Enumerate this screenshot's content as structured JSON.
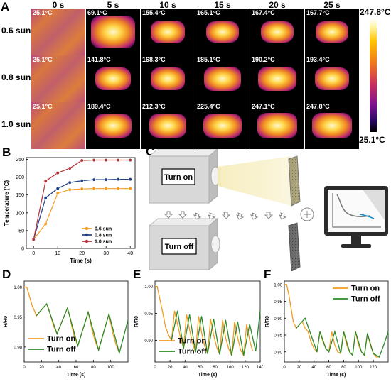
{
  "panel_labels": {
    "a": "A",
    "b": "B",
    "c": "C",
    "d": "D",
    "e": "E",
    "f": "F"
  },
  "panel_a": {
    "times": [
      "0 s",
      "5 s",
      "10 s",
      "15 s",
      "20 s",
      "25 s"
    ],
    "rows": [
      {
        "label": "0.6 sun",
        "temps": [
          "25.1°C",
          "69.1°C",
          "155.4°C",
          "165.1°C",
          "167.4°C",
          "167.7°C"
        ]
      },
      {
        "label": "0.8 sun",
        "temps": [
          "25.1°C",
          "141.8°C",
          "168.3°C",
          "185.1°C",
          "190.2°C",
          "193.4°C"
        ]
      },
      {
        "label": "1.0 sun",
        "temps": [
          "25.1°C",
          "189.4°C",
          "212.3°C",
          "225.4°C",
          "247.1°C",
          "247.8°C"
        ]
      }
    ],
    "colorbar": {
      "max": "247.8°C",
      "min": "25.1°C"
    }
  },
  "panel_c": {
    "turn_on": "Turn on",
    "turn_off": "Turn off"
  },
  "chart_data": [
    {
      "type": "line",
      "panel": "B",
      "xlabel": "Time (s)",
      "ylabel": "Temperature (°C)",
      "xlim": [
        -3,
        42
      ],
      "ylim": [
        0,
        255
      ],
      "xticks": [
        0,
        10,
        20,
        30,
        40
      ],
      "yticks": [
        0,
        50,
        100,
        150,
        200,
        250
      ],
      "legend_position": "bottom-right",
      "series": [
        {
          "name": "0.6 sun",
          "color": "#f39b1f",
          "x": [
            0,
            5,
            10,
            15,
            20,
            25,
            30,
            35,
            40
          ],
          "y": [
            25,
            69,
            155,
            165,
            167,
            168,
            168,
            168,
            168
          ]
        },
        {
          "name": "0.8 sun",
          "color": "#1e3e86",
          "x": [
            0,
            5,
            10,
            15,
            20,
            25,
            30,
            35,
            40
          ],
          "y": [
            25,
            142,
            168,
            185,
            190,
            193,
            193,
            194,
            194
          ]
        },
        {
          "name": "1.0 sun",
          "color": "#b22f36",
          "x": [
            0,
            5,
            10,
            15,
            20,
            25,
            30,
            35,
            40
          ],
          "y": [
            25,
            189,
            212,
            225,
            247,
            248,
            248,
            248,
            248
          ]
        }
      ]
    },
    {
      "type": "line",
      "panel": "D",
      "xlabel": "Time (s)",
      "ylabel": "R/R0",
      "xlim": [
        0,
        120
      ],
      "ylim": [
        0.875,
        1.01
      ],
      "xticks": [
        0,
        20,
        40,
        60,
        80,
        100
      ],
      "yticks": [
        0.9,
        0.95,
        1.0
      ],
      "ytick_labels": [
        "0.90",
        "0.95",
        "1.00"
      ],
      "legend_position": "bottom-left",
      "series": [
        {
          "name": "Turn on",
          "color": "#f39b1f",
          "x": [
            0,
            3,
            6,
            9,
            12,
            14,
            26,
            28,
            31,
            34,
            38,
            50,
            52,
            55,
            58,
            62,
            74,
            76,
            79,
            82,
            86,
            98,
            100,
            103,
            106,
            110
          ],
          "y": [
            1.0,
            1.0,
            0.985,
            0.97,
            0.96,
            0.952,
            0.972,
            0.965,
            0.95,
            0.935,
            0.922,
            0.965,
            0.955,
            0.935,
            0.918,
            0.902,
            0.958,
            0.945,
            0.925,
            0.91,
            0.895,
            0.955,
            0.94,
            0.92,
            0.905,
            0.89
          ]
        },
        {
          "name": "Turn off",
          "color": "#2c8a2c",
          "x": [
            14,
            26,
            38,
            50,
            62,
            74,
            86,
            98,
            110,
            120
          ],
          "y": [
            0.952,
            0.972,
            0.922,
            0.965,
            0.902,
            0.958,
            0.895,
            0.955,
            0.89,
            0.945
          ]
        }
      ]
    },
    {
      "type": "line",
      "panel": "E",
      "xlabel": "Time (s)",
      "ylabel": "R/R0",
      "xlim": [
        0,
        140
      ],
      "ylim": [
        0.86,
        1.01
      ],
      "xticks": [
        0,
        20,
        40,
        60,
        80,
        100,
        120,
        140
      ],
      "yticks": [
        0.9,
        0.95,
        1.0
      ],
      "ytick_labels": [
        "0.90",
        "0.95",
        "1.00"
      ],
      "legend_position": "bottom-left",
      "series": [
        {
          "name": "Turn on",
          "color": "#f39b1f",
          "x": [
            0,
            3,
            6,
            9,
            12,
            14,
            18,
            22,
            26,
            30,
            34,
            38,
            42,
            46,
            50,
            54,
            58,
            62,
            66,
            70,
            74,
            78,
            82,
            86,
            90,
            94,
            98,
            102,
            106,
            110,
            114,
            118,
            122,
            126,
            130
          ],
          "y": [
            1.0,
            1.0,
            0.98,
            0.96,
            0.94,
            0.925,
            0.91,
            0.9,
            0.955,
            0.93,
            0.905,
            0.885,
            0.948,
            0.92,
            0.895,
            0.878,
            0.945,
            0.915,
            0.89,
            0.875,
            0.94,
            0.91,
            0.888,
            0.874,
            0.938,
            0.905,
            0.885,
            0.872,
            0.935,
            0.905,
            0.882,
            0.872,
            0.93,
            0.9,
            0.88
          ]
        },
        {
          "name": "Turn off",
          "color": "#2c8a2c",
          "x": [
            22,
            30,
            38,
            46,
            54,
            62,
            70,
            78,
            86,
            94,
            102,
            110,
            118,
            126,
            134,
            140
          ],
          "y": [
            0.9,
            0.955,
            0.885,
            0.948,
            0.878,
            0.945,
            0.875,
            0.94,
            0.874,
            0.938,
            0.872,
            0.935,
            0.872,
            0.93,
            0.88,
            0.955
          ]
        }
      ]
    },
    {
      "type": "line",
      "panel": "F",
      "xlabel": "Time (s)",
      "ylabel": "R/R0",
      "xlim": [
        0,
        140
      ],
      "ylim": [
        0.77,
        1.01
      ],
      "xticks": [
        0,
        20,
        40,
        60,
        80,
        100,
        120
      ],
      "yticks": [
        0.8,
        0.85,
        0.9,
        0.95,
        1.0
      ],
      "ytick_labels": [
        "0.80",
        "0.85",
        "0.90",
        "0.95",
        "1.00"
      ],
      "legend_position": "top-right",
      "series": [
        {
          "name": "Turn on",
          "color": "#f39b1f",
          "x": [
            0,
            3,
            6,
            9,
            12,
            16,
            20,
            24,
            28,
            32,
            36,
            40,
            44,
            48,
            52,
            56,
            60,
            64,
            68,
            72,
            76,
            80,
            84,
            88,
            92,
            96,
            100,
            104,
            108,
            112,
            116,
            120,
            124,
            128
          ],
          "y": [
            1.0,
            1.0,
            0.97,
            0.93,
            0.89,
            0.87,
            0.88,
            0.89,
            0.87,
            0.86,
            0.83,
            0.81,
            0.8,
            0.86,
            0.83,
            0.81,
            0.8,
            0.86,
            0.82,
            0.8,
            0.795,
            0.86,
            0.82,
            0.8,
            0.79,
            0.86,
            0.82,
            0.8,
            0.79,
            0.855,
            0.82,
            0.795,
            0.785,
            0.785
          ]
        },
        {
          "name": "Turn off",
          "color": "#2c8a2c",
          "x": [
            16,
            20,
            24,
            28,
            44,
            48,
            56,
            60,
            68,
            76,
            80,
            88,
            92,
            96,
            104,
            108,
            112,
            120,
            128,
            134,
            140
          ],
          "y": [
            0.87,
            0.88,
            0.89,
            0.9,
            0.8,
            0.86,
            0.81,
            0.8,
            0.86,
            0.795,
            0.86,
            0.8,
            0.79,
            0.86,
            0.8,
            0.79,
            0.855,
            0.795,
            0.785,
            0.82,
            0.86
          ]
        }
      ]
    }
  ]
}
